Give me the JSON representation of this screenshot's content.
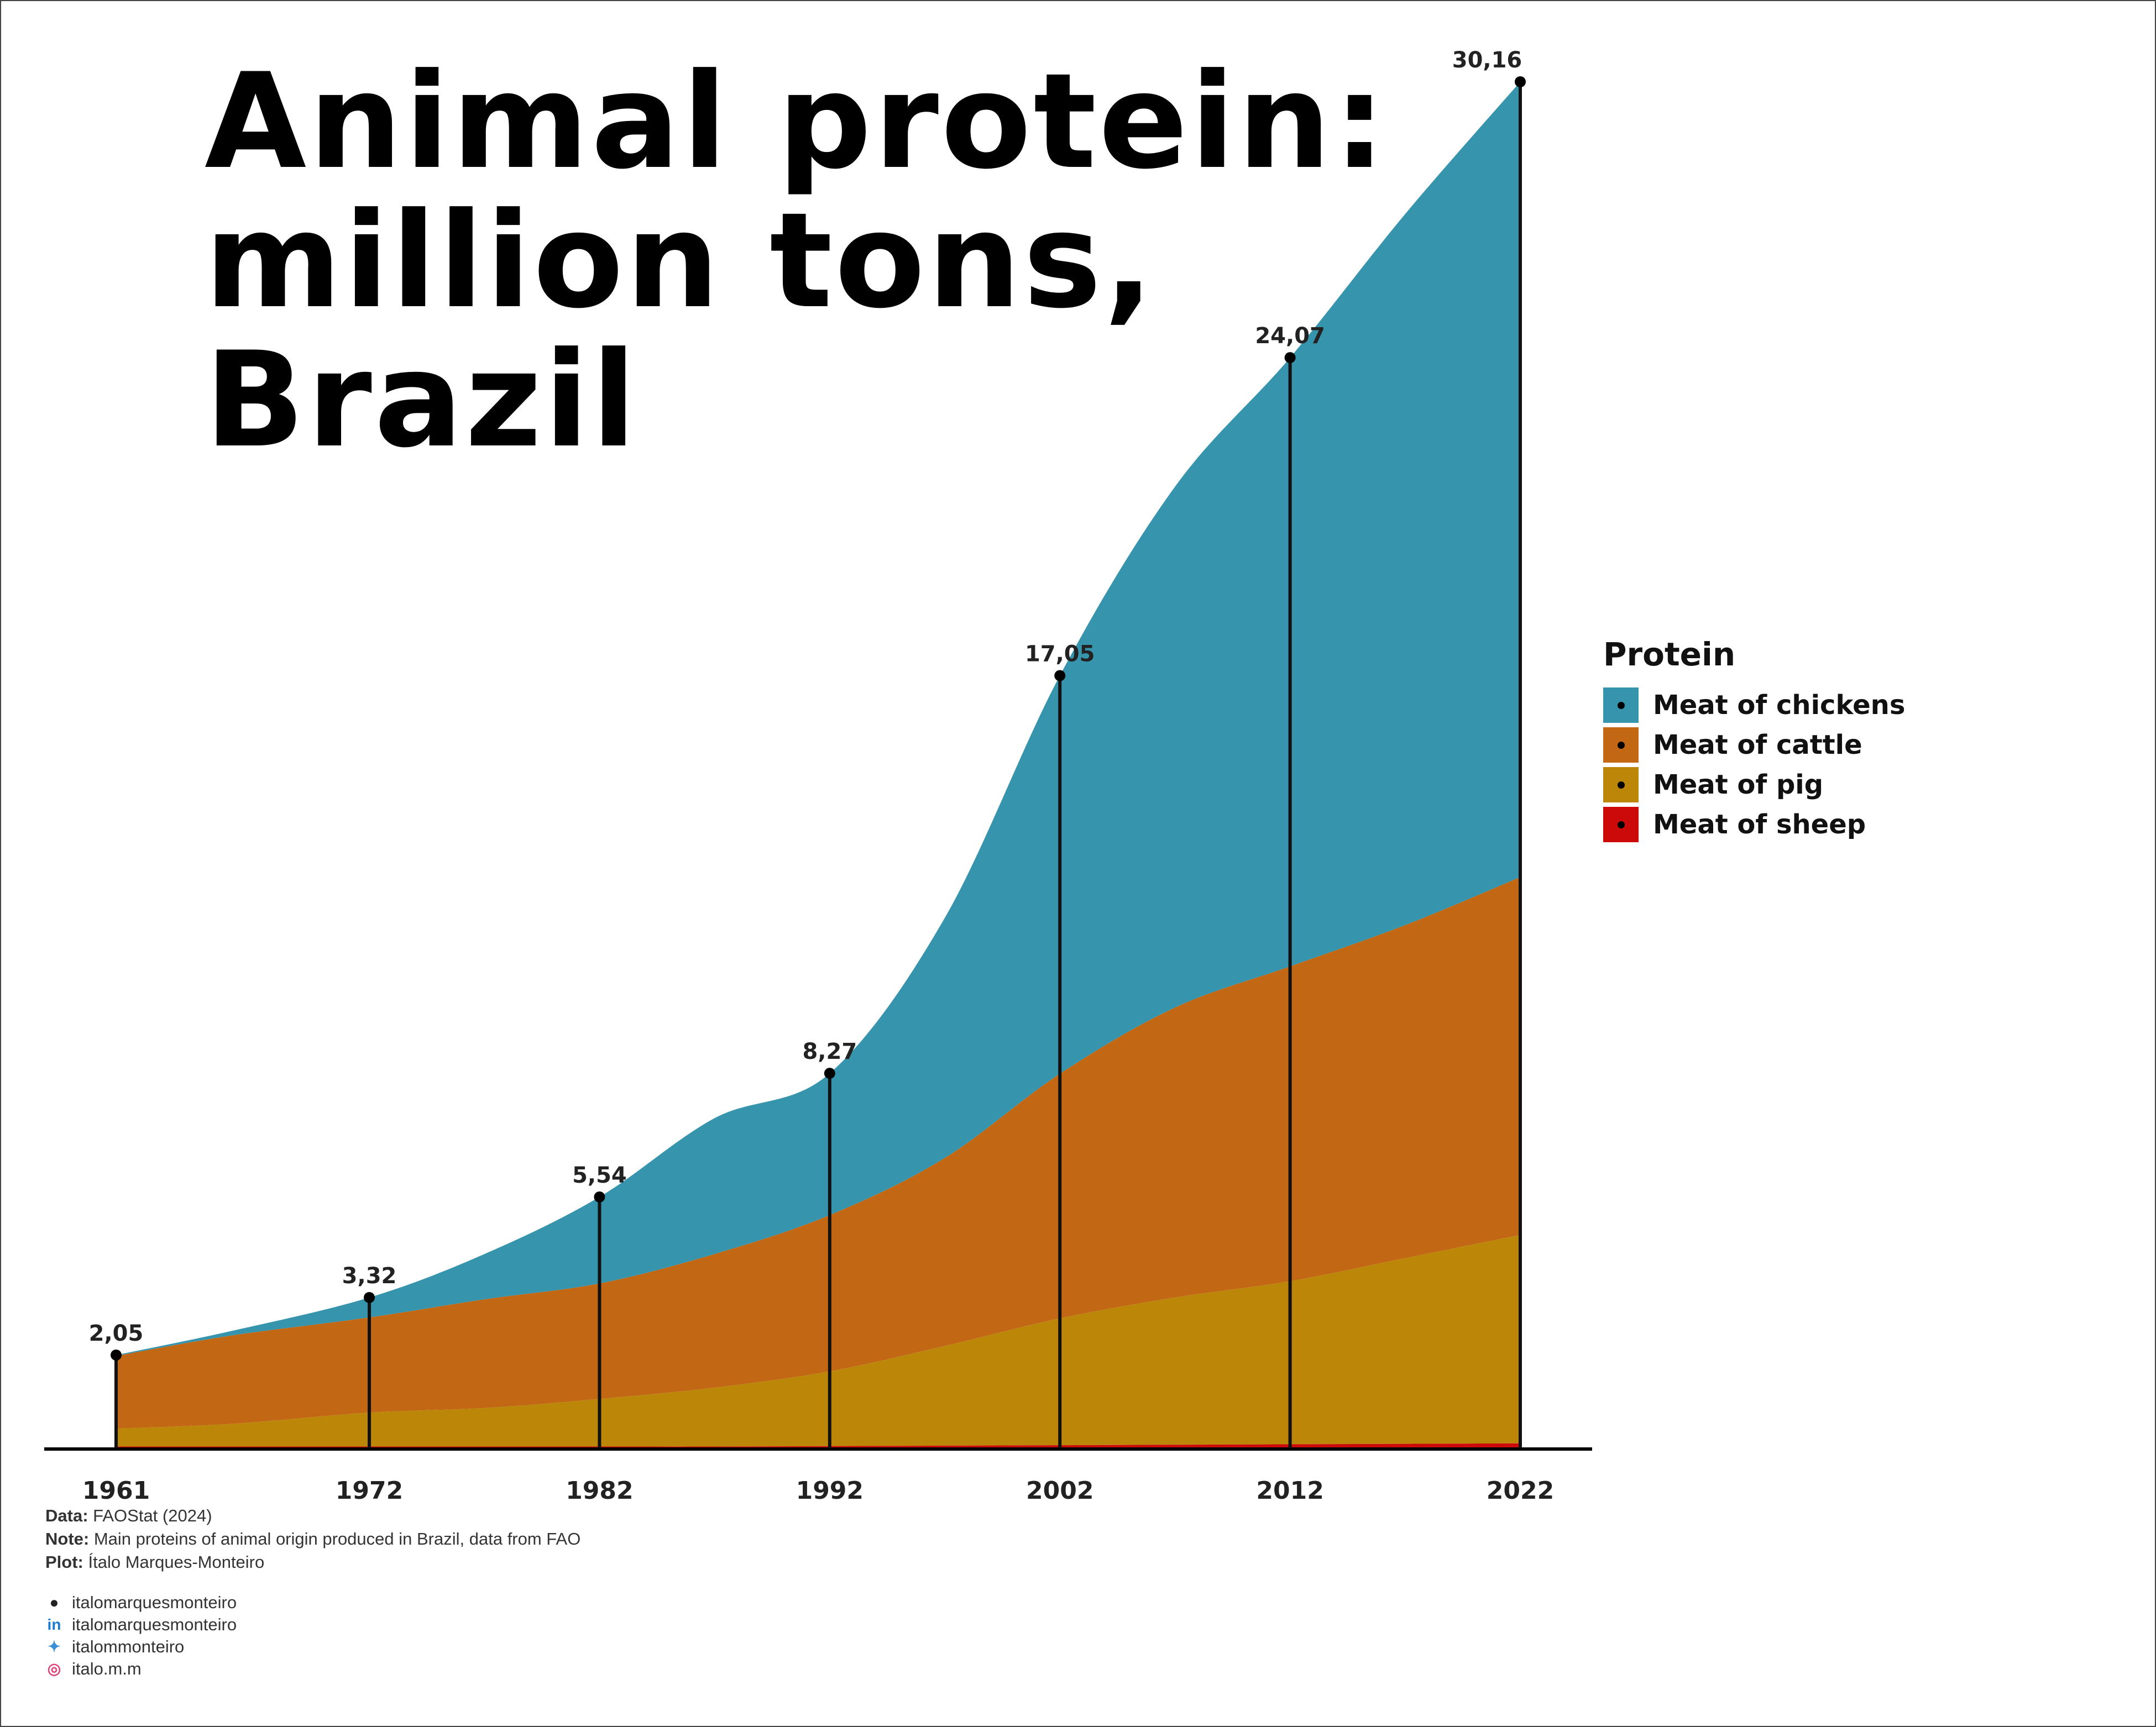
{
  "title_lines": [
    "Animal protein:",
    "million tons,",
    "Brazil"
  ],
  "legend": {
    "title": "Protein",
    "items": [
      {
        "label": "Meat of chickens",
        "color": "#3794ad"
      },
      {
        "label": "Meat of cattle",
        "color": "#c26714"
      },
      {
        "label": "Meat of pig",
        "color": "#bc8709"
      },
      {
        "label": "Meat of sheep",
        "color": "#cc0a0a"
      }
    ]
  },
  "caption": {
    "data_label": "Data:",
    "data_value": "FAOStat (2024)",
    "note_label": "Note:",
    "note_value": "Main proteins of animal origin produced in Brazil, data from FAO",
    "plot_label": "Plot:",
    "plot_value": "Ítalo Marques-Monteiro"
  },
  "socials": [
    {
      "icon": "github-icon",
      "text": "italomarquesmonteiro",
      "color": "#222222",
      "glyph": "●"
    },
    {
      "icon": "linkedin-icon",
      "text": "italomarquesmonteiro",
      "color": "#1a7bd1",
      "glyph": "in"
    },
    {
      "icon": "twitter-icon",
      "text": "italommonteiro",
      "color": "#3a8fd6",
      "glyph": "✦"
    },
    {
      "icon": "instagram-icon",
      "text": "italo.m.m",
      "color": "#e0457a",
      "glyph": "◎"
    }
  ],
  "chart_data": {
    "type": "area",
    "x": [
      1961,
      1966,
      1972,
      1977,
      1982,
      1987,
      1992,
      1997,
      2002,
      2007,
      2012,
      2017,
      2022
    ],
    "xticks": [
      "1961",
      "1972",
      "1982",
      "1992",
      "2002",
      "2012",
      "2022"
    ],
    "stack_order": [
      "Meat of sheep",
      "Meat of pig",
      "Meat of cattle",
      "Meat of chickens"
    ],
    "series": [
      {
        "name": "Meat of sheep",
        "values": [
          0.03,
          0.03,
          0.03,
          0.03,
          0.03,
          0.03,
          0.04,
          0.05,
          0.06,
          0.07,
          0.08,
          0.09,
          0.1
        ]
      },
      {
        "name": "Meat of pig",
        "values": [
          0.4,
          0.5,
          0.75,
          0.85,
          1.05,
          1.3,
          1.65,
          2.2,
          2.8,
          3.25,
          3.6,
          4.1,
          4.6
        ]
      },
      {
        "name": "Meat of cattle",
        "values": [
          1.6,
          1.95,
          2.1,
          2.4,
          2.55,
          2.95,
          3.45,
          4.15,
          5.4,
          6.4,
          6.95,
          7.35,
          7.9
        ]
      },
      {
        "name": "Meat of chickens",
        "values": [
          0.02,
          0.1,
          0.44,
          1.0,
          1.91,
          3.0,
          3.13,
          5.3,
          8.79,
          11.5,
          13.44,
          15.7,
          17.56
        ]
      }
    ],
    "highlight_years": [
      "1961",
      "1972",
      "1982",
      "1992",
      "2002",
      "2012",
      "2022"
    ],
    "highlight_totals": [
      "2,05",
      "3,32",
      "5,54",
      "8,27",
      "17,05",
      "24,07",
      "30,16"
    ],
    "highlight_values": [
      2.05,
      3.32,
      5.54,
      8.27,
      17.05,
      24.07,
      30.16
    ],
    "ylim": [
      0,
      30.16
    ],
    "grid": false,
    "legend_position": "right"
  }
}
